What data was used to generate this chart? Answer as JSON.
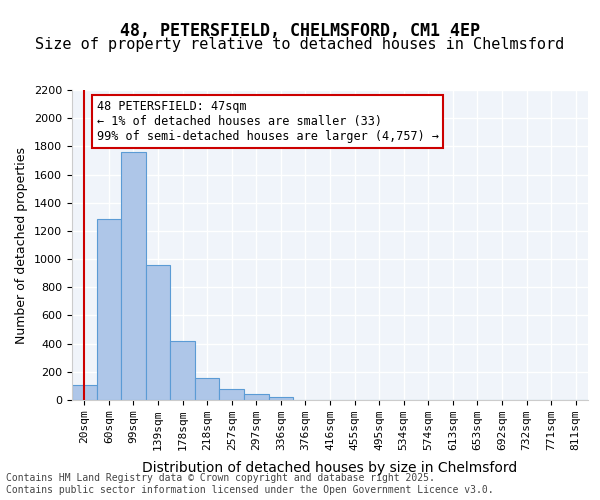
{
  "title1": "48, PETERSFIELD, CHELMSFORD, CM1 4EP",
  "title2": "Size of property relative to detached houses in Chelmsford",
  "xlabel": "Distribution of detached houses by size in Chelmsford",
  "ylabel": "Number of detached properties",
  "footer": "Contains HM Land Registry data © Crown copyright and database right 2025.\nContains public sector information licensed under the Open Government Licence v3.0.",
  "categories": [
    "20sqm",
    "60sqm",
    "99sqm",
    "139sqm",
    "178sqm",
    "218sqm",
    "257sqm",
    "297sqm",
    "336sqm",
    "376sqm",
    "416sqm",
    "455sqm",
    "495sqm",
    "534sqm",
    "574sqm",
    "613sqm",
    "653sqm",
    "692sqm",
    "732sqm",
    "771sqm",
    "811sqm"
  ],
  "values": [
    110,
    1285,
    1760,
    960,
    420,
    155,
    75,
    40,
    20,
    0,
    0,
    0,
    0,
    0,
    0,
    0,
    0,
    0,
    0,
    0,
    0
  ],
  "bar_color": "#aec6e8",
  "bar_edge_color": "#5b9bd5",
  "ylim": [
    0,
    2200
  ],
  "yticks": [
    0,
    200,
    400,
    600,
    800,
    1000,
    1200,
    1400,
    1600,
    1800,
    2000,
    2200
  ],
  "annotation_text": "48 PETERSFIELD: 47sqm\n← 1% of detached houses are smaller (33)\n99% of semi-detached houses are larger (4,757) →",
  "vline_x": 0,
  "box_color": "#cc0000",
  "background_color": "#f0f4fa",
  "grid_color": "#ffffff",
  "title_fontsize": 12,
  "subtitle_fontsize": 11,
  "annot_fontsize": 8.5,
  "tick_fontsize": 8,
  "ylabel_fontsize": 9,
  "xlabel_fontsize": 10
}
